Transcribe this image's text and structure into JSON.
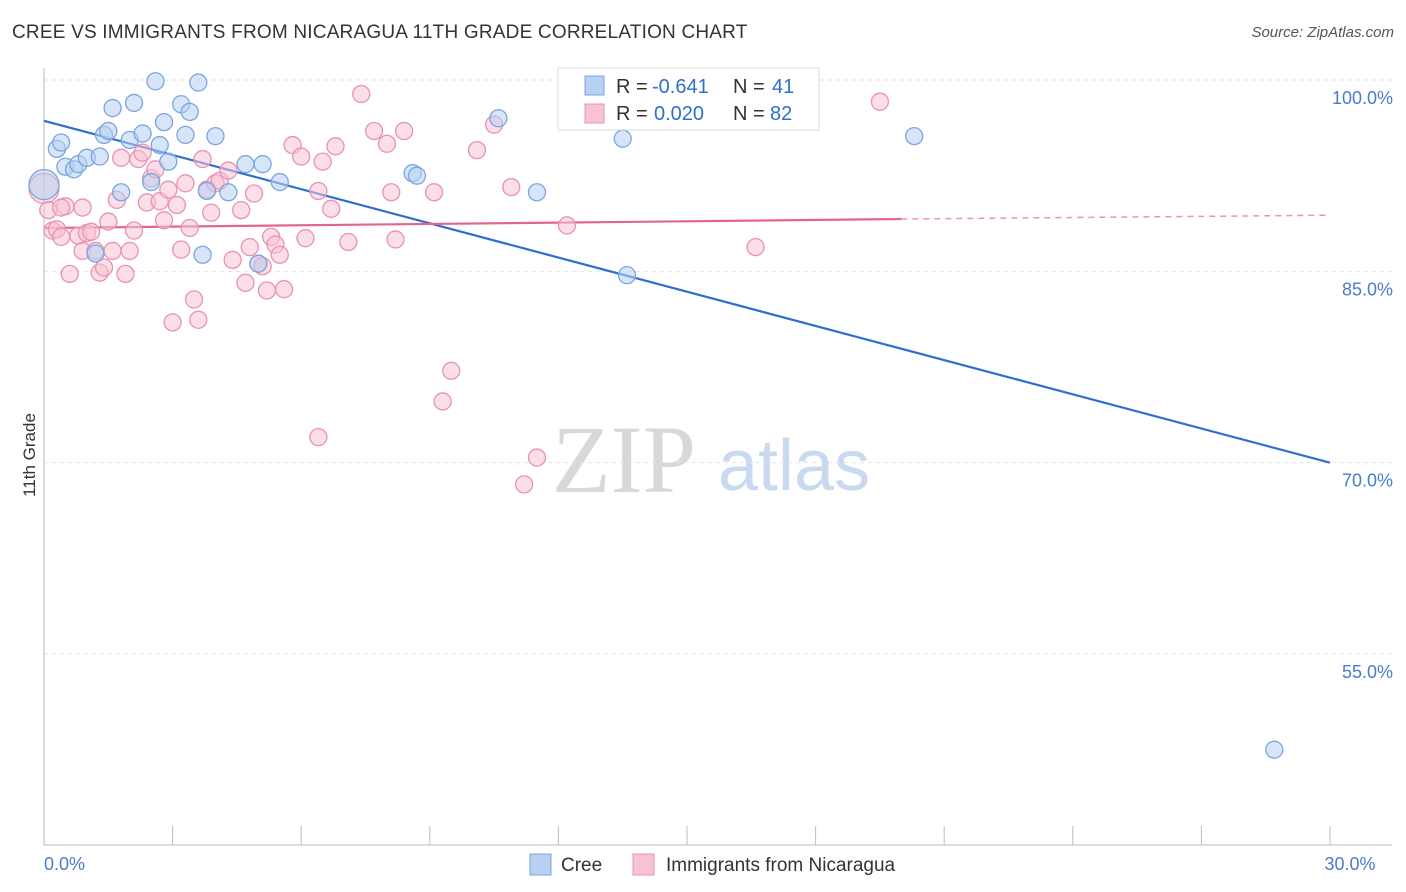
{
  "title": "CREE VS IMMIGRANTS FROM NICARAGUA 11TH GRADE CORRELATION CHART",
  "source": "Source: ZipAtlas.com",
  "watermark": {
    "zip": "ZIP",
    "atlas": "atlas"
  },
  "colors": {
    "cree_fill": "#b8d0f2",
    "cree_stroke": "#7aa6e0",
    "cree_line": "#2f6fce",
    "nic_fill": "#f7c3d4",
    "nic_stroke": "#e892b1",
    "nic_line": "#e0668f",
    "tick_text": "#4a7cc9",
    "grid": "#e5e5e5"
  },
  "stats": {
    "cree": {
      "r_label": "R =",
      "r_value": "-0.641",
      "n_label": "N =",
      "n_value": "41"
    },
    "nicaragua": {
      "r_label": "R =",
      "r_value": "0.020",
      "n_label": "N =",
      "n_value": "82"
    }
  },
  "chart_data": {
    "type": "scatter",
    "title": "CREE VS IMMIGRANTS FROM NICARAGUA 11TH GRADE CORRELATION CHART",
    "xlabel": "",
    "ylabel": "11th Grade",
    "xlim": [
      0,
      30
    ],
    "ylim": [
      40,
      102
    ],
    "x_tick_labels": [
      {
        "value": 0,
        "label": "0.0%"
      },
      {
        "value": 30,
        "label": "30.0%"
      }
    ],
    "x_minor_ticks": [
      3,
      6,
      9,
      12,
      15,
      18,
      21,
      24,
      27,
      30
    ],
    "y_tick_labels": [
      {
        "value": 55,
        "label": "55.0%"
      },
      {
        "value": 70,
        "label": "70.0%"
      },
      {
        "value": 85,
        "label": "85.0%"
      },
      {
        "value": 100,
        "label": "100.0%"
      }
    ],
    "grid": true,
    "legend_position": "bottom-center",
    "series": [
      {
        "name": "Cree",
        "color": "#b8d0f2",
        "trend": {
          "x": [
            0,
            30
          ],
          "y": [
            96.8,
            70.0
          ],
          "dashed_extension": false
        },
        "points": [
          [
            0.0,
            91.8
          ],
          [
            0.3,
            94.6
          ],
          [
            0.4,
            95.1
          ],
          [
            0.5,
            93.2
          ],
          [
            0.7,
            93.0
          ],
          [
            0.8,
            93.4
          ],
          [
            1.0,
            93.9
          ],
          [
            1.3,
            94.0
          ],
          [
            1.4,
            95.7
          ],
          [
            1.5,
            96.0
          ],
          [
            1.6,
            97.8
          ],
          [
            1.8,
            91.2
          ],
          [
            2.0,
            95.3
          ],
          [
            2.1,
            98.2
          ],
          [
            2.3,
            95.8
          ],
          [
            2.5,
            92.0
          ],
          [
            2.6,
            99.9
          ],
          [
            2.7,
            94.9
          ],
          [
            2.8,
            96.7
          ],
          [
            2.9,
            93.6
          ],
          [
            3.2,
            98.1
          ],
          [
            3.3,
            95.7
          ],
          [
            3.4,
            97.5
          ],
          [
            3.6,
            99.8
          ],
          [
            3.7,
            86.3
          ],
          [
            3.8,
            91.3
          ],
          [
            4.0,
            95.6
          ],
          [
            4.3,
            91.2
          ],
          [
            4.7,
            93.4
          ],
          [
            5.0,
            85.6
          ],
          [
            5.1,
            93.4
          ],
          [
            5.5,
            92.0
          ],
          [
            8.6,
            92.7
          ],
          [
            8.7,
            92.5
          ],
          [
            10.6,
            97.0
          ],
          [
            11.5,
            91.2
          ],
          [
            13.5,
            95.4
          ],
          [
            13.6,
            84.7
          ],
          [
            20.3,
            95.6
          ],
          [
            28.7,
            47.5
          ],
          [
            1.2,
            86.4
          ]
        ]
      },
      {
        "name": "Immigrants from Nicaragua",
        "color": "#f7c3d4",
        "trend": {
          "x": [
            0,
            20.0
          ],
          "y": [
            88.4,
            89.1
          ],
          "dashed_extension": true,
          "dashed_to": [
            30,
            89.4
          ]
        },
        "points": [
          [
            0.0,
            91.5
          ],
          [
            0.1,
            89.8
          ],
          [
            0.2,
            88.2
          ],
          [
            0.3,
            88.3
          ],
          [
            0.4,
            87.7
          ],
          [
            0.5,
            90.1
          ],
          [
            0.6,
            84.8
          ],
          [
            0.8,
            87.8
          ],
          [
            0.9,
            86.6
          ],
          [
            0.9,
            90.0
          ],
          [
            1.0,
            88.0
          ],
          [
            1.1,
            88.1
          ],
          [
            1.2,
            86.6
          ],
          [
            1.3,
            84.9
          ],
          [
            1.4,
            85.3
          ],
          [
            1.5,
            88.9
          ],
          [
            1.6,
            86.6
          ],
          [
            1.8,
            93.9
          ],
          [
            1.9,
            84.8
          ],
          [
            2.0,
            86.6
          ],
          [
            2.1,
            88.2
          ],
          [
            2.2,
            93.8
          ],
          [
            2.3,
            94.3
          ],
          [
            2.4,
            90.4
          ],
          [
            2.5,
            92.3
          ],
          [
            2.6,
            93.0
          ],
          [
            2.7,
            90.5
          ],
          [
            2.8,
            89.0
          ],
          [
            2.9,
            91.4
          ],
          [
            3.0,
            81.0
          ],
          [
            3.1,
            90.2
          ],
          [
            3.2,
            86.7
          ],
          [
            3.3,
            91.9
          ],
          [
            3.4,
            88.4
          ],
          [
            3.5,
            82.8
          ],
          [
            3.6,
            81.2
          ],
          [
            3.7,
            93.8
          ],
          [
            3.8,
            91.4
          ],
          [
            3.9,
            89.6
          ],
          [
            4.0,
            91.9
          ],
          [
            4.1,
            92.1
          ],
          [
            4.3,
            92.9
          ],
          [
            4.4,
            85.9
          ],
          [
            4.6,
            89.8
          ],
          [
            4.7,
            84.1
          ],
          [
            4.8,
            86.9
          ],
          [
            4.9,
            91.1
          ],
          [
            5.0,
            85.6
          ],
          [
            5.1,
            85.4
          ],
          [
            5.2,
            83.5
          ],
          [
            5.3,
            87.7
          ],
          [
            5.4,
            87.1
          ],
          [
            5.5,
            86.3
          ],
          [
            5.6,
            83.6
          ],
          [
            5.8,
            94.9
          ],
          [
            6.0,
            94.0
          ],
          [
            6.1,
            87.6
          ],
          [
            6.4,
            91.3
          ],
          [
            6.5,
            93.6
          ],
          [
            6.7,
            89.9
          ],
          [
            6.8,
            94.8
          ],
          [
            7.1,
            87.3
          ],
          [
            7.4,
            98.9
          ],
          [
            7.7,
            96.0
          ],
          [
            8.0,
            95.0
          ],
          [
            8.1,
            91.2
          ],
          [
            8.2,
            87.5
          ],
          [
            8.4,
            96.0
          ],
          [
            9.1,
            91.2
          ],
          [
            9.3,
            74.8
          ],
          [
            9.5,
            77.2
          ],
          [
            10.1,
            94.5
          ],
          [
            10.5,
            96.5
          ],
          [
            10.9,
            91.6
          ],
          [
            11.2,
            68.3
          ],
          [
            11.5,
            70.4
          ],
          [
            12.2,
            88.6
          ],
          [
            16.6,
            86.9
          ],
          [
            19.5,
            98.3
          ],
          [
            6.4,
            72.0
          ],
          [
            0.4,
            90.0
          ],
          [
            1.7,
            90.6
          ]
        ]
      }
    ]
  },
  "legend": {
    "items": [
      "Cree",
      "Immigrants from Nicaragua"
    ]
  }
}
